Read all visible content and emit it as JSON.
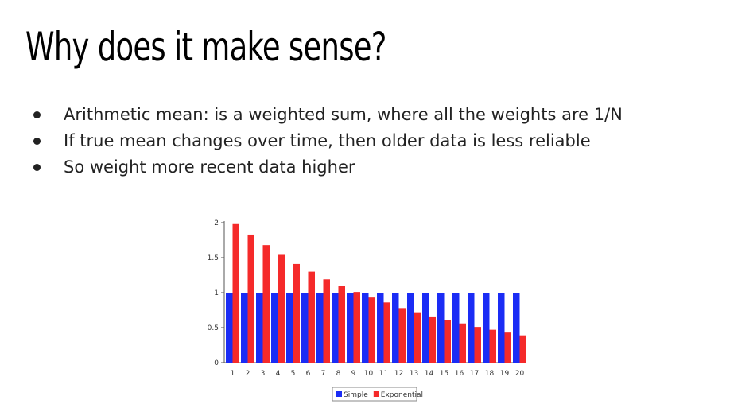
{
  "slide": {
    "title": "Why does it make sense?",
    "bullets": [
      "Arithmetic mean: is a weighted sum, where all the weights are 1/N",
      "If true mean changes over time, then older data is less reliable",
      "So weight more recent data higher"
    ]
  },
  "chart_data": {
    "type": "bar",
    "categories": [
      "1",
      "2",
      "3",
      "4",
      "5",
      "6",
      "7",
      "8",
      "9",
      "10",
      "11",
      "12",
      "13",
      "14",
      "15",
      "16",
      "17",
      "18",
      "19",
      "20"
    ],
    "series": [
      {
        "name": "Simple",
        "color": "#1a2cf5",
        "values": [
          1,
          1,
          1,
          1,
          1,
          1,
          1,
          1,
          1,
          1,
          1,
          1,
          1,
          1,
          1,
          1,
          1,
          1,
          1,
          1
        ]
      },
      {
        "name": "Exponential",
        "color": "#f52a2a",
        "values": [
          1.98,
          1.83,
          1.68,
          1.54,
          1.41,
          1.3,
          1.19,
          1.1,
          1.01,
          0.93,
          0.86,
          0.78,
          0.72,
          0.66,
          0.61,
          0.56,
          0.51,
          0.47,
          0.43,
          0.39
        ]
      }
    ],
    "yticks": [
      "0",
      "0.5",
      "1",
      "1.5",
      "2"
    ],
    "ylim": [
      0,
      2
    ],
    "legend_position": "bottom",
    "title": "",
    "xlabel": "",
    "ylabel": ""
  }
}
